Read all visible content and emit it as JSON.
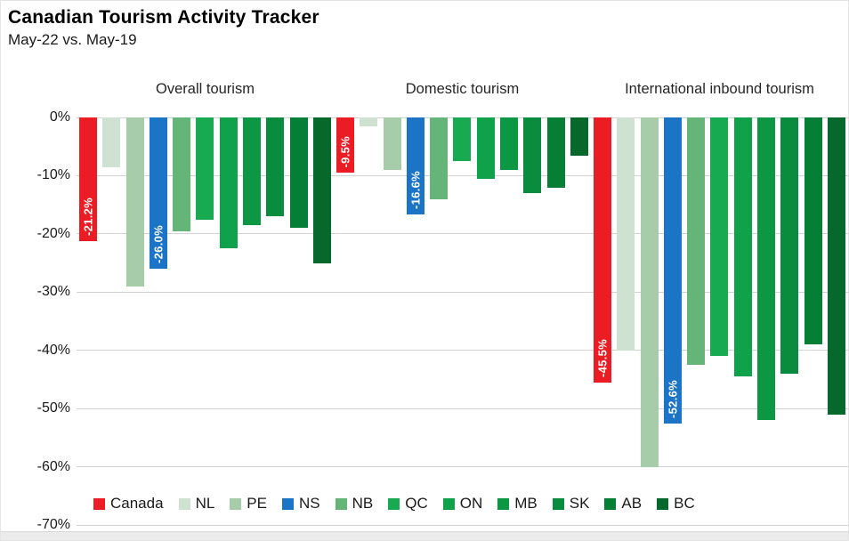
{
  "title": "Canadian Tourism Activity Tracker",
  "subtitle": "May-22 vs. May-19",
  "chart_data": {
    "type": "bar",
    "title": "Canadian Tourism Activity Tracker",
    "subtitle": "May-22 vs. May-19",
    "unit": "percent",
    "categories": [
      "Canada",
      "NL",
      "PE",
      "NS",
      "NB",
      "QC",
      "ON",
      "MB",
      "SK",
      "AB",
      "BC"
    ],
    "series_colors": [
      "#EC1C24",
      "#CFE2D1",
      "#A6CCAA",
      "#1B74C5",
      "#64B577",
      "#17AA50",
      "#10A14B",
      "#0C9745",
      "#098C3E",
      "#067F36",
      "#06682B"
    ],
    "y_axis": {
      "min": -70,
      "max": 0,
      "tick_step": 10,
      "ticks": [
        "0%",
        "-10%",
        "-20%",
        "-30%",
        "-40%",
        "-50%",
        "-60%",
        "-70%"
      ],
      "grid": true
    },
    "groups": [
      {
        "label": "Overall tourism",
        "values": [
          -21.2,
          -8.5,
          -29,
          -26.0,
          -19.5,
          -17.5,
          -22.5,
          -18.5,
          -17,
          -19,
          -25
        ],
        "data_labels": {
          "0": "-21.2%",
          "3": "-26.0%"
        }
      },
      {
        "label": "Domestic tourism",
        "values": [
          -9.5,
          -1.5,
          -9,
          -16.6,
          -14,
          -7.5,
          -10.5,
          -9,
          -13,
          -12,
          -6.5
        ],
        "data_labels": {
          "0": "-9.5%",
          "3": "-16.6%"
        }
      },
      {
        "label": "International inbound tourism",
        "values": [
          -45.5,
          -40,
          -60,
          -52.6,
          -42.5,
          -41,
          -44.5,
          -52,
          -44,
          -39,
          -51
        ],
        "data_labels": {
          "0": "-45.5%",
          "3": "-52.6%"
        }
      }
    ],
    "legend": {
      "position": "bottom",
      "items": [
        {
          "label": "Canada",
          "color": "#EC1C24"
        },
        {
          "label": "NL",
          "color": "#CFE2D1"
        },
        {
          "label": "PE",
          "color": "#A6CCAA"
        },
        {
          "label": "NS",
          "color": "#1B74C5"
        },
        {
          "label": "NB",
          "color": "#64B577"
        },
        {
          "label": "QC",
          "color": "#17AA50"
        },
        {
          "label": "ON",
          "color": "#10A14B"
        },
        {
          "label": "MB",
          "color": "#0C9745"
        },
        {
          "label": "SK",
          "color": "#098C3E"
        },
        {
          "label": "AB",
          "color": "#067F36"
        },
        {
          "label": "BC",
          "color": "#06682B"
        }
      ]
    }
  }
}
